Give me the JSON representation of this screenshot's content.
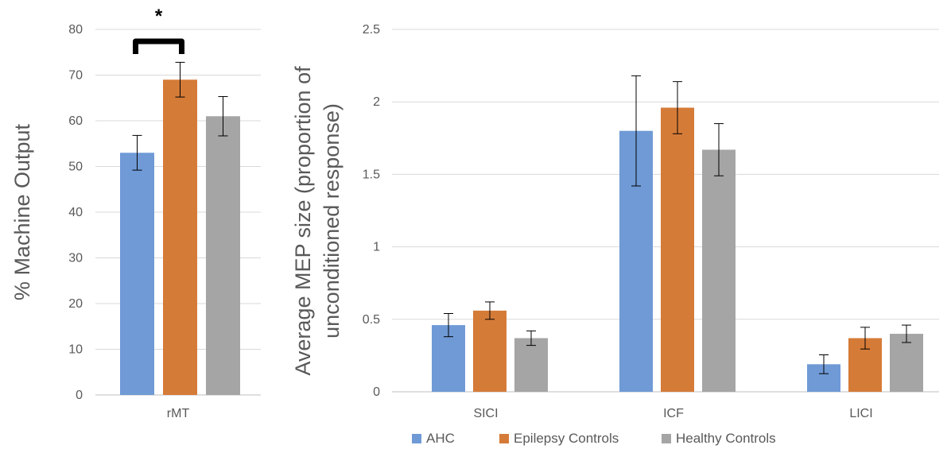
{
  "chart_data": [
    {
      "type": "bar",
      "categories": [
        "rMT"
      ],
      "ylabel": "% Machine Output",
      "ylim": [
        0,
        80
      ],
      "yticks": [
        0,
        10,
        20,
        30,
        40,
        50,
        60,
        70,
        80
      ],
      "grid": true,
      "series": [
        {
          "name": "AHC",
          "values": [
            53
          ],
          "error": [
            3.8
          ],
          "color": "#6f9ad6"
        },
        {
          "name": "Epilepsy Controls",
          "values": [
            69
          ],
          "error": [
            3.8
          ],
          "color": "#d57b38"
        },
        {
          "name": "Healthy Controls",
          "values": [
            61
          ],
          "error": [
            4.3
          ],
          "color": "#a5a5a5"
        }
      ],
      "annotation": {
        "text": "*",
        "between": [
          "AHC",
          "Epilepsy Controls"
        ]
      }
    },
    {
      "type": "bar",
      "categories": [
        "SICI",
        "ICF",
        "LICI"
      ],
      "ylabel": "Average MEP size (proportion of unconditioned response)",
      "ylabel_lines": [
        "Average MEP size (proportion of",
        "unconditioned response)"
      ],
      "ylim": [
        0,
        2.5
      ],
      "yticks": [
        0,
        0.5,
        1,
        1.5,
        2,
        2.5
      ],
      "ytick_labels": [
        "0",
        "0.5",
        "1",
        "1.5",
        "2",
        "2.5"
      ],
      "grid": true,
      "legend_position": "bottom",
      "series": [
        {
          "name": "AHC",
          "values": [
            0.46,
            1.8,
            0.19
          ],
          "error": [
            0.08,
            0.38,
            0.065
          ],
          "color": "#6f9ad6"
        },
        {
          "name": "Epilepsy Controls",
          "values": [
            0.56,
            1.96,
            0.37
          ],
          "error": [
            0.06,
            0.18,
            0.075
          ],
          "color": "#d57b38"
        },
        {
          "name": "Healthy Controls",
          "values": [
            0.37,
            1.67,
            0.4
          ],
          "error": [
            0.05,
            0.18,
            0.06
          ],
          "color": "#a5a5a5"
        }
      ]
    }
  ]
}
